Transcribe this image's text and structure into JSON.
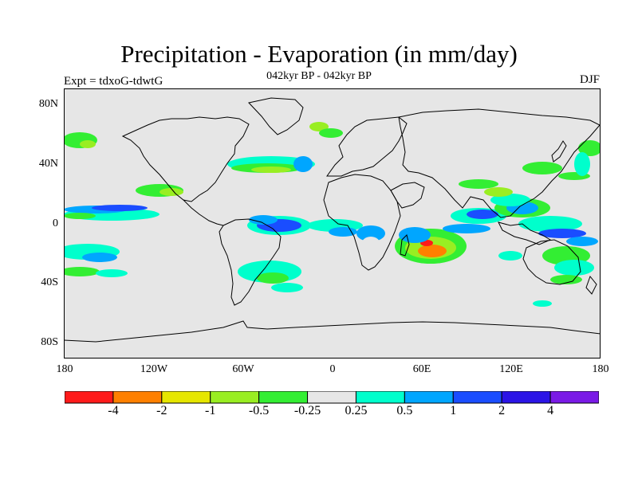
{
  "title": "Precipitation - Evaporation (in mm/day)",
  "subtitle": "042kyr BP - 042kyr BP",
  "left_label": "Expt = tdxoG-tdwtG",
  "right_label": "DJF",
  "lat_ticks": [
    "80N",
    "40N",
    "0",
    "40S",
    "80S"
  ],
  "lon_ticks": [
    "180",
    "120W",
    "60W",
    "0",
    "60E",
    "120E",
    "180"
  ],
  "colorbar": {
    "colors": [
      "#ff1a1a",
      "#ff8000",
      "#e6e600",
      "#99ee22",
      "#33ee33",
      "#e6e6e6",
      "#00ffcc",
      "#00a6ff",
      "#1a4dff",
      "#2b14e6",
      "#7a1ae6"
    ],
    "labels": [
      "-4",
      "-2",
      "-1",
      "-0.5",
      "-0.25",
      "0.25",
      "0.5",
      "1",
      "2",
      "4"
    ]
  },
  "colors": {
    "background_ocean": "#e6e6e6",
    "coast": "#000000"
  }
}
